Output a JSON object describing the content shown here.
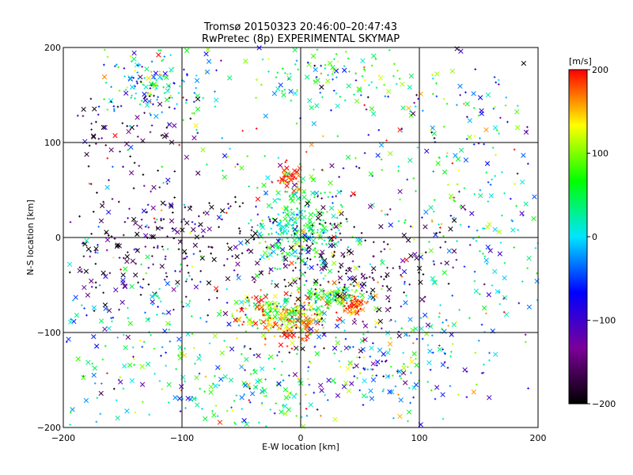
{
  "chart_data": {
    "type": "scatter",
    "title_lines": [
      "Tromsø 20150323 20:46:00–20:47:43",
      "RwPretec (8p) EXPERIMENTAL SKYMAP"
    ],
    "xlabel": "E-W location [km]",
    "ylabel": "N-S location [km]",
    "xlim": [
      -200,
      200
    ],
    "ylim": [
      -200,
      200
    ],
    "xticks": [
      -200,
      -100,
      0,
      100,
      200
    ],
    "yticks": [
      -200,
      -100,
      0,
      100,
      200
    ],
    "xtick_labels": [
      "−200",
      "−100",
      "0",
      "100",
      "200"
    ],
    "ytick_labels": [
      "−200",
      "−100",
      "0",
      "100",
      "200"
    ],
    "grid": true,
    "markers": [
      "x",
      "+"
    ],
    "colorbar": {
      "label": "[m/s]",
      "range": [
        -200,
        200
      ],
      "ticks": [
        200,
        100,
        0,
        -100,
        -200
      ],
      "tick_labels": [
        "200",
        "100",
        "0",
        "−100",
        "−200"
      ],
      "colormap": [
        "#000000",
        "#7b0099",
        "#0000ff",
        "#00e5ff",
        "#00ff00",
        "#ffff00",
        "#ff0000"
      ]
    },
    "clusters": [
      {
        "x": -120,
        "y": 160,
        "sx": 22,
        "sy": 18,
        "v": 0,
        "vs": 70
      },
      {
        "x": -145,
        "y": 110,
        "sx": 25,
        "sy": 25,
        "v": -170,
        "vs": 40
      },
      {
        "x": -110,
        "y": -10,
        "sx": 45,
        "sy": 35,
        "v": -170,
        "vs": 50
      },
      {
        "x": -130,
        "y": -120,
        "sx": 45,
        "sy": 45,
        "v": 0,
        "vs": 60
      },
      {
        "x": 0,
        "y": 10,
        "sx": 18,
        "sy": 22,
        "v": 40,
        "vs": 40
      },
      {
        "x": -10,
        "y": 63,
        "sx": 6,
        "sy": 8,
        "v": 190,
        "vs": 20
      },
      {
        "x": -15,
        "y": -80,
        "sx": 22,
        "sy": 10,
        "v": 120,
        "vs": 70
      },
      {
        "x": 30,
        "y": -60,
        "sx": 12,
        "sy": 6,
        "v": 90,
        "vs": 50
      },
      {
        "x": 45,
        "y": -72,
        "sx": 6,
        "sy": 5,
        "v": 190,
        "vs": 20
      },
      {
        "x": -5,
        "y": -95,
        "sx": 12,
        "sy": 10,
        "v": 180,
        "vs": 30
      },
      {
        "x": 40,
        "y": -30,
        "sx": 40,
        "sy": 30,
        "v": -180,
        "vs": 30
      },
      {
        "x": -30,
        "y": -160,
        "sx": 35,
        "sy": 25,
        "v": 40,
        "vs": 60
      },
      {
        "x": 80,
        "y": -130,
        "sx": 35,
        "sy": 30,
        "v": -20,
        "vs": 80
      },
      {
        "x": 30,
        "y": 170,
        "sx": 40,
        "sy": 20,
        "v": 40,
        "vs": 60
      },
      {
        "x": 140,
        "y": 130,
        "sx": 35,
        "sy": 40,
        "v": -40,
        "vs": 100
      },
      {
        "x": 140,
        "y": -10,
        "sx": 50,
        "sy": 60,
        "v": 20,
        "vs": 80
      },
      {
        "x": 0,
        "y": 0,
        "sx": 120,
        "sy": 120,
        "v": 0,
        "vs": 120
      }
    ]
  }
}
